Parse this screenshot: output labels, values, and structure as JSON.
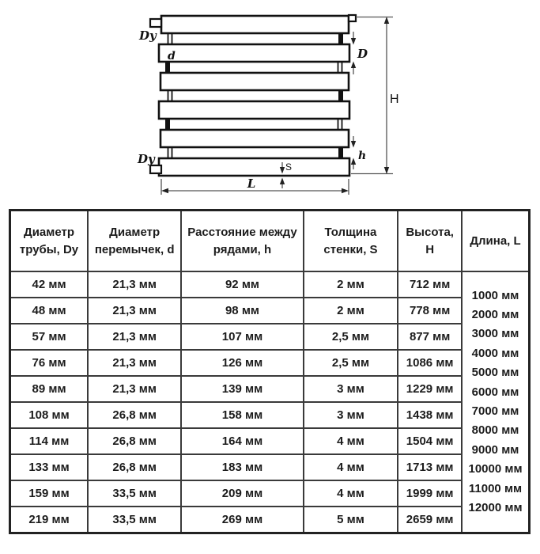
{
  "diagram": {
    "labels": {
      "dy_top": "Dy",
      "dy_bottom": "Dy",
      "d": "d",
      "D": "D",
      "H": "H",
      "h": "h",
      "S": "S",
      "L": "L"
    }
  },
  "table": {
    "headers": [
      "Диаметр трубы, Dy",
      "Диаметр перемычек, d",
      "Расстояние между рядами, h",
      "Толщина стенки, S",
      "Высота, H",
      "Длина, L"
    ],
    "rows": [
      [
        "42 мм",
        "21,3 мм",
        "92 мм",
        "2 мм",
        "712 мм"
      ],
      [
        "48 мм",
        "21,3 мм",
        "98 мм",
        "2 мм",
        "778 мм"
      ],
      [
        "57 мм",
        "21,3 мм",
        "107 мм",
        "2,5 мм",
        "877 мм"
      ],
      [
        "76 мм",
        "21,3 мм",
        "126 мм",
        "2,5 мм",
        "1086 мм"
      ],
      [
        "89 мм",
        "21,3 мм",
        "139 мм",
        "3 мм",
        "1229 мм"
      ],
      [
        "108 мм",
        "26,8 мм",
        "158 мм",
        "3 мм",
        "1438 мм"
      ],
      [
        "114 мм",
        "26,8 мм",
        "164 мм",
        "4 мм",
        "1504 мм"
      ],
      [
        "133 мм",
        "26,8 мм",
        "183 мм",
        "4 мм",
        "1713 мм"
      ],
      [
        "159 мм",
        "33,5 мм",
        "209 мм",
        "4 мм",
        "1999 мм"
      ],
      [
        "219 мм",
        "33,5 мм",
        "269 мм",
        "5 мм",
        "2659 мм"
      ]
    ],
    "length_options": [
      "1000 мм",
      "2000 мм",
      "3000 мм",
      "4000 мм",
      "5000 мм",
      "6000 мм",
      "7000 мм",
      "8000 мм",
      "9000 мм",
      "10000 мм",
      "11000 мм",
      "12000 мм"
    ]
  }
}
